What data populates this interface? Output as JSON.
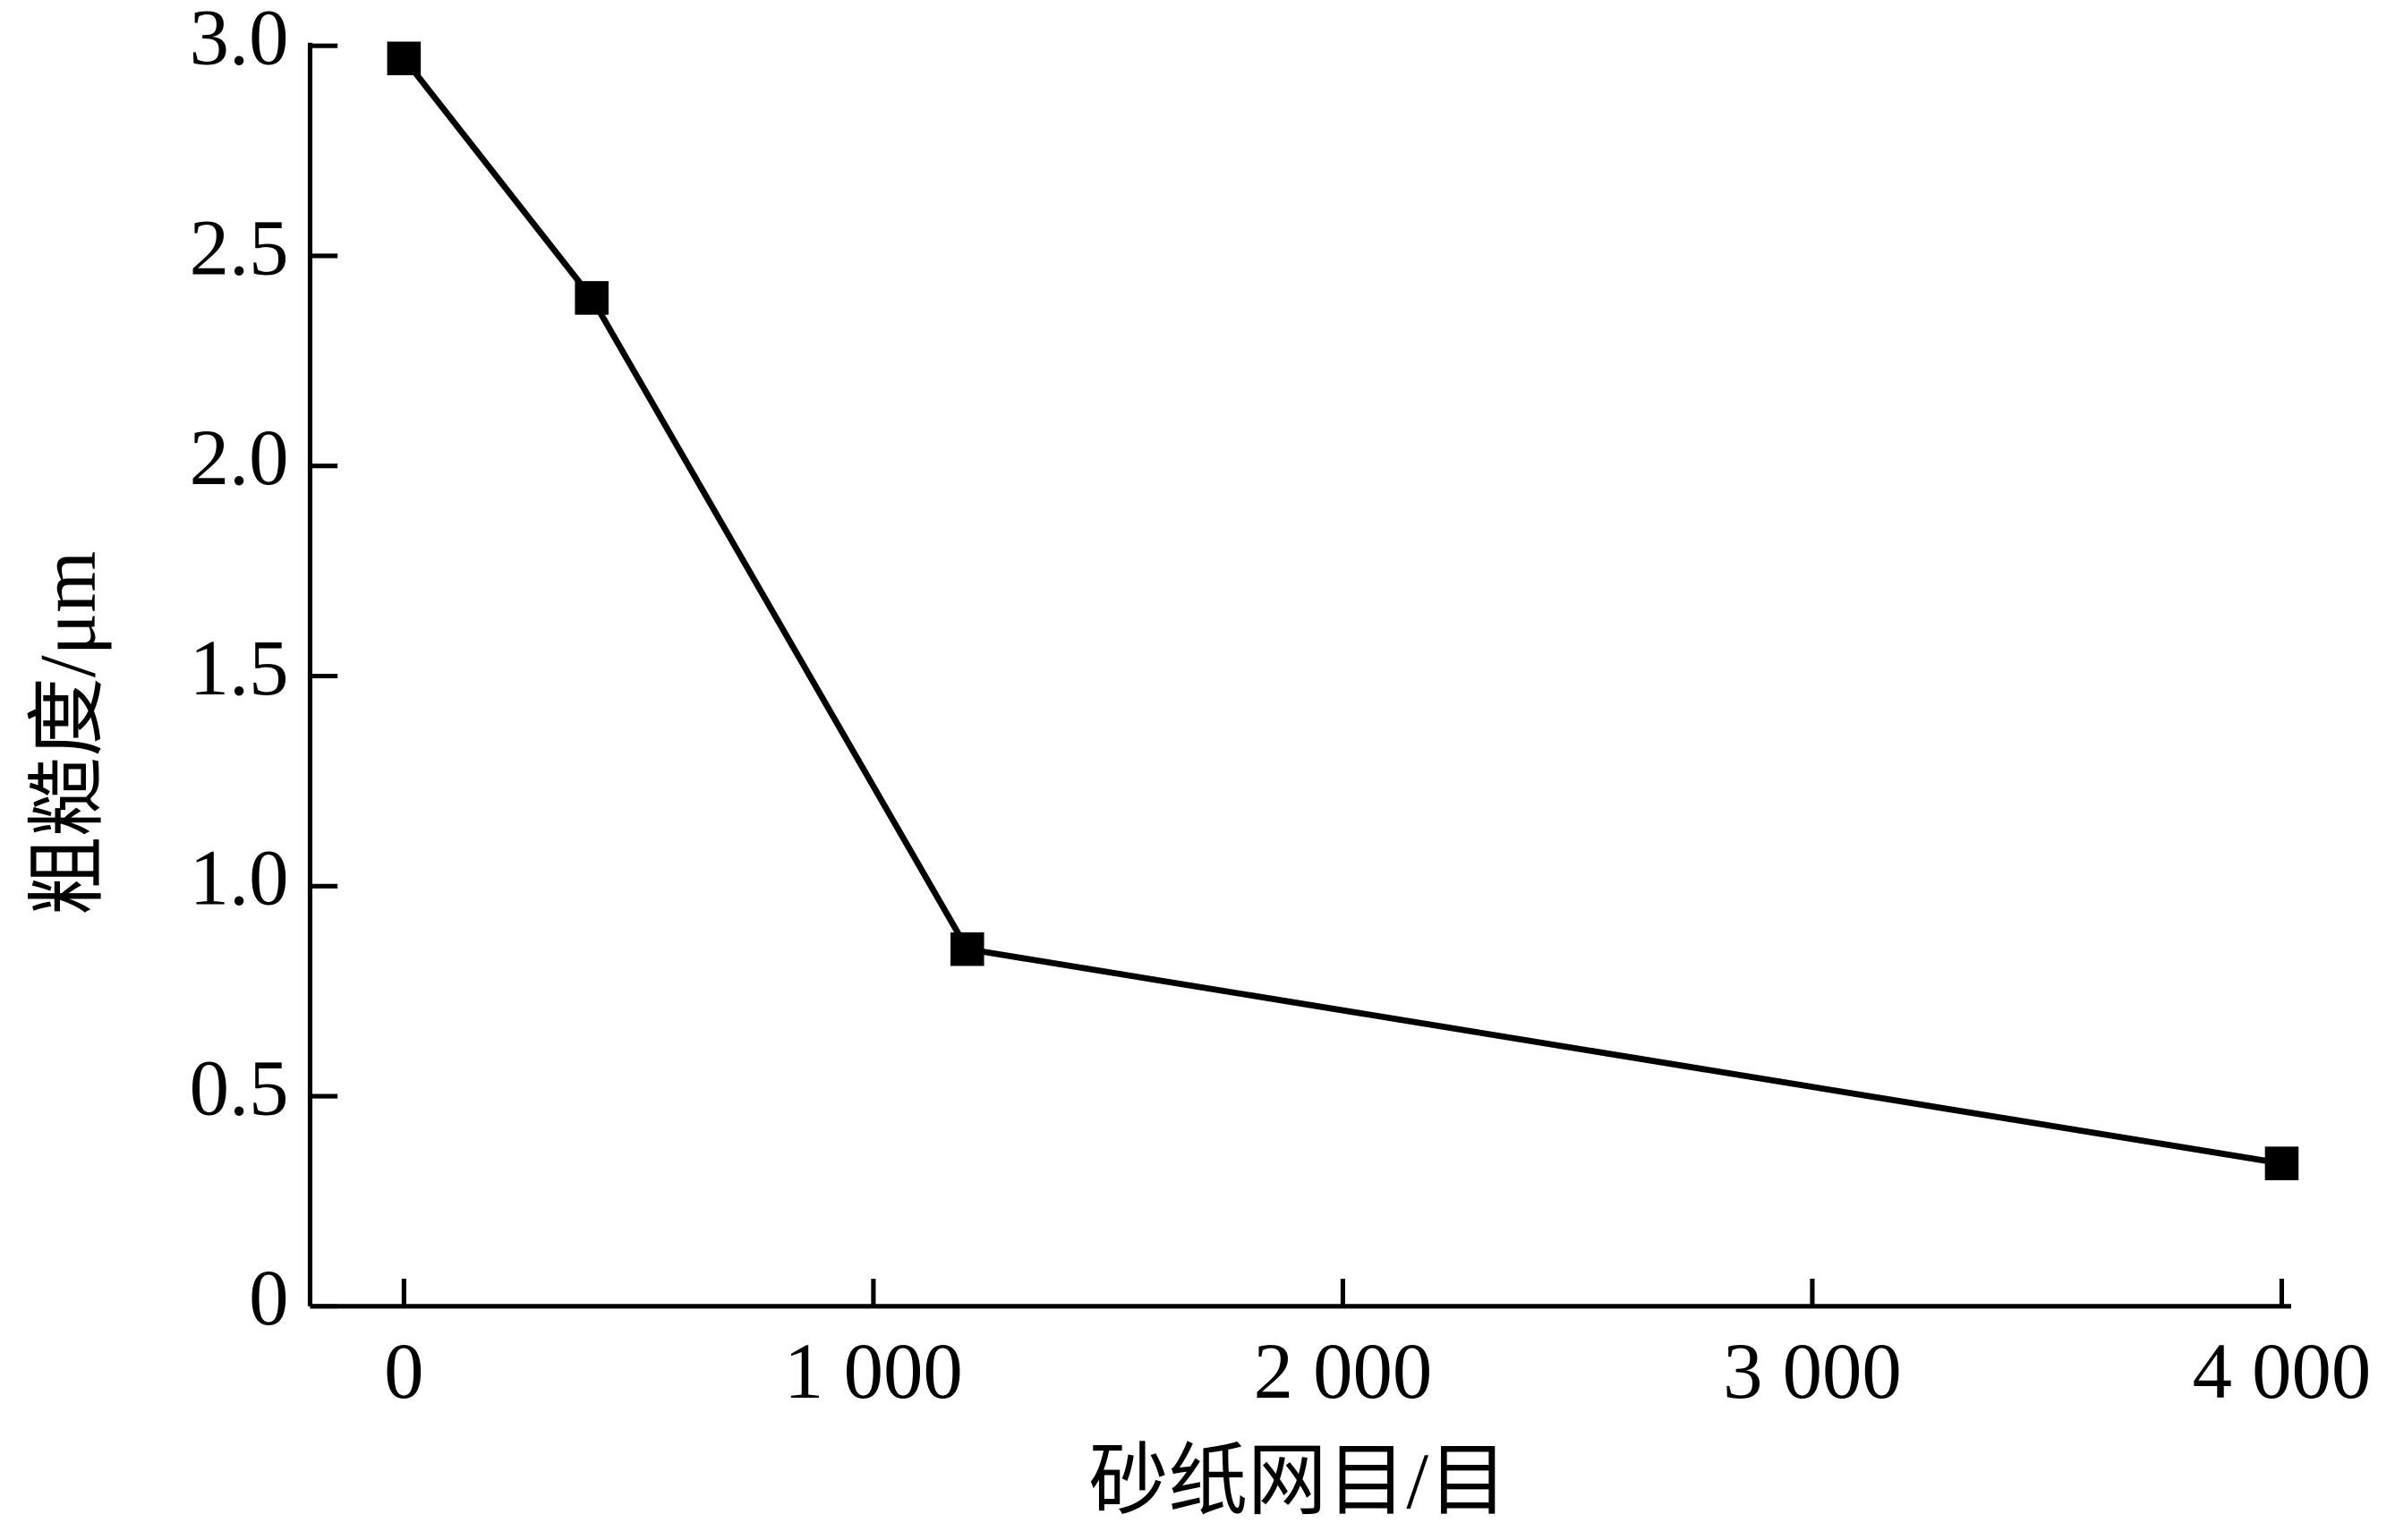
{
  "chart_data": {
    "type": "line",
    "x_label": "砂纸网目/目",
    "y_label": "粗糙度/μm",
    "series": [
      {
        "name": "粗糙度",
        "color": "#000000",
        "x": [
          0,
          400,
          1200,
          4000
        ],
        "values": [
          2.97,
          2.4,
          0.85,
          0.34
        ]
      }
    ],
    "xlim": [
      -200,
      4020
    ],
    "xticks": [
      0,
      {
        "value": 1000,
        "label": "1 000"
      },
      {
        "value": 2000,
        "label": "2 000"
      },
      {
        "value": 3000,
        "label": "3 000"
      },
      {
        "value": 4000,
        "label": "4 000"
      }
    ],
    "ylim": [
      0,
      3
    ],
    "yticks": [
      0,
      {
        "value": 0.5,
        "label": "0.5"
      },
      {
        "value": 1,
        "label": "1.0"
      },
      {
        "value": 1.5,
        "label": "1.5"
      },
      {
        "value": 2,
        "label": "2.0"
      },
      {
        "value": 2.5,
        "label": "2.5"
      },
      {
        "value": 3,
        "label": "3.0"
      }
    ],
    "grid": false
  }
}
